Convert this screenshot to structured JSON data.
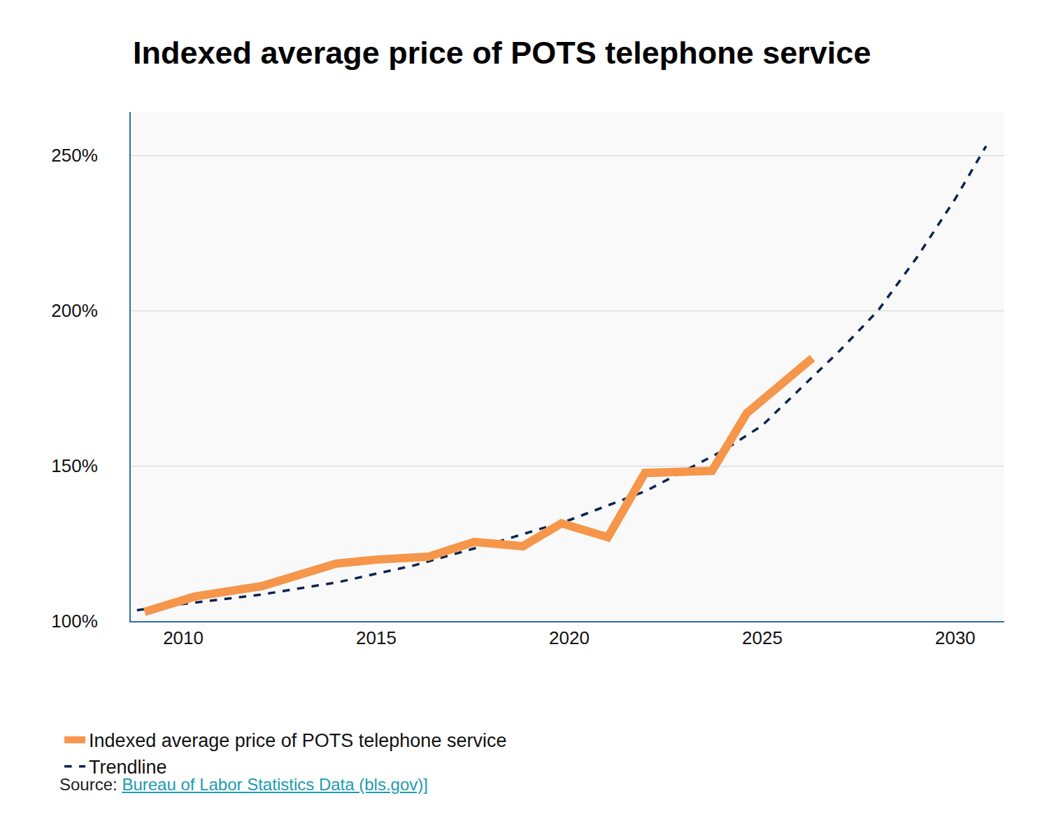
{
  "chart_data": {
    "type": "line",
    "title": "Indexed average price of POTS telephone service",
    "source": {
      "label": "Source:",
      "text": "Bureau of Labor Statistics Data (bls.gov)]"
    },
    "series": [
      {
        "name": "Indexed average price of POTS telephone service",
        "color": "#f5964a",
        "line_style": "solid",
        "x": [
          2009.0,
          2010.3,
          2012.05,
          2013.96,
          2015.0,
          2016.34,
          2017.54,
          2018.8,
          2019.8,
          2021.0,
          2021.96,
          2023.7,
          2024.6,
          2026.3
        ],
        "values": [
          103,
          107.9,
          111.3,
          118.5,
          119.8,
          120.7,
          125.5,
          124.1,
          131.5,
          127,
          147.7,
          148.4,
          167,
          184.7
        ]
      },
      {
        "name": "Trendline",
        "color": "#0c2350",
        "line_style": "dash",
        "x": [
          2008.8,
          2010,
          2012,
          2014,
          2016,
          2018,
          2020,
          2022,
          2024,
          2025,
          2026,
          2027,
          2028,
          2029,
          2030,
          2030.8
        ],
        "values": [
          103.5,
          105.5,
          108.5,
          112.5,
          118,
          125,
          132.5,
          142,
          155,
          163,
          175,
          187,
          200,
          217,
          236,
          253
        ]
      }
    ],
    "xlim": [
      2008.64,
      2031.27
    ],
    "xticks": [
      2010,
      2015,
      2020,
      2025,
      2030
    ],
    "ylim": [
      100,
      264
    ],
    "yticks": [
      {
        "value": 100,
        "label": "100%"
      },
      {
        "value": 150,
        "label": "150%"
      },
      {
        "value": 200,
        "label": "200%"
      },
      {
        "value": 250,
        "label": "250%"
      }
    ],
    "grid": true,
    "legend": "bottom"
  }
}
